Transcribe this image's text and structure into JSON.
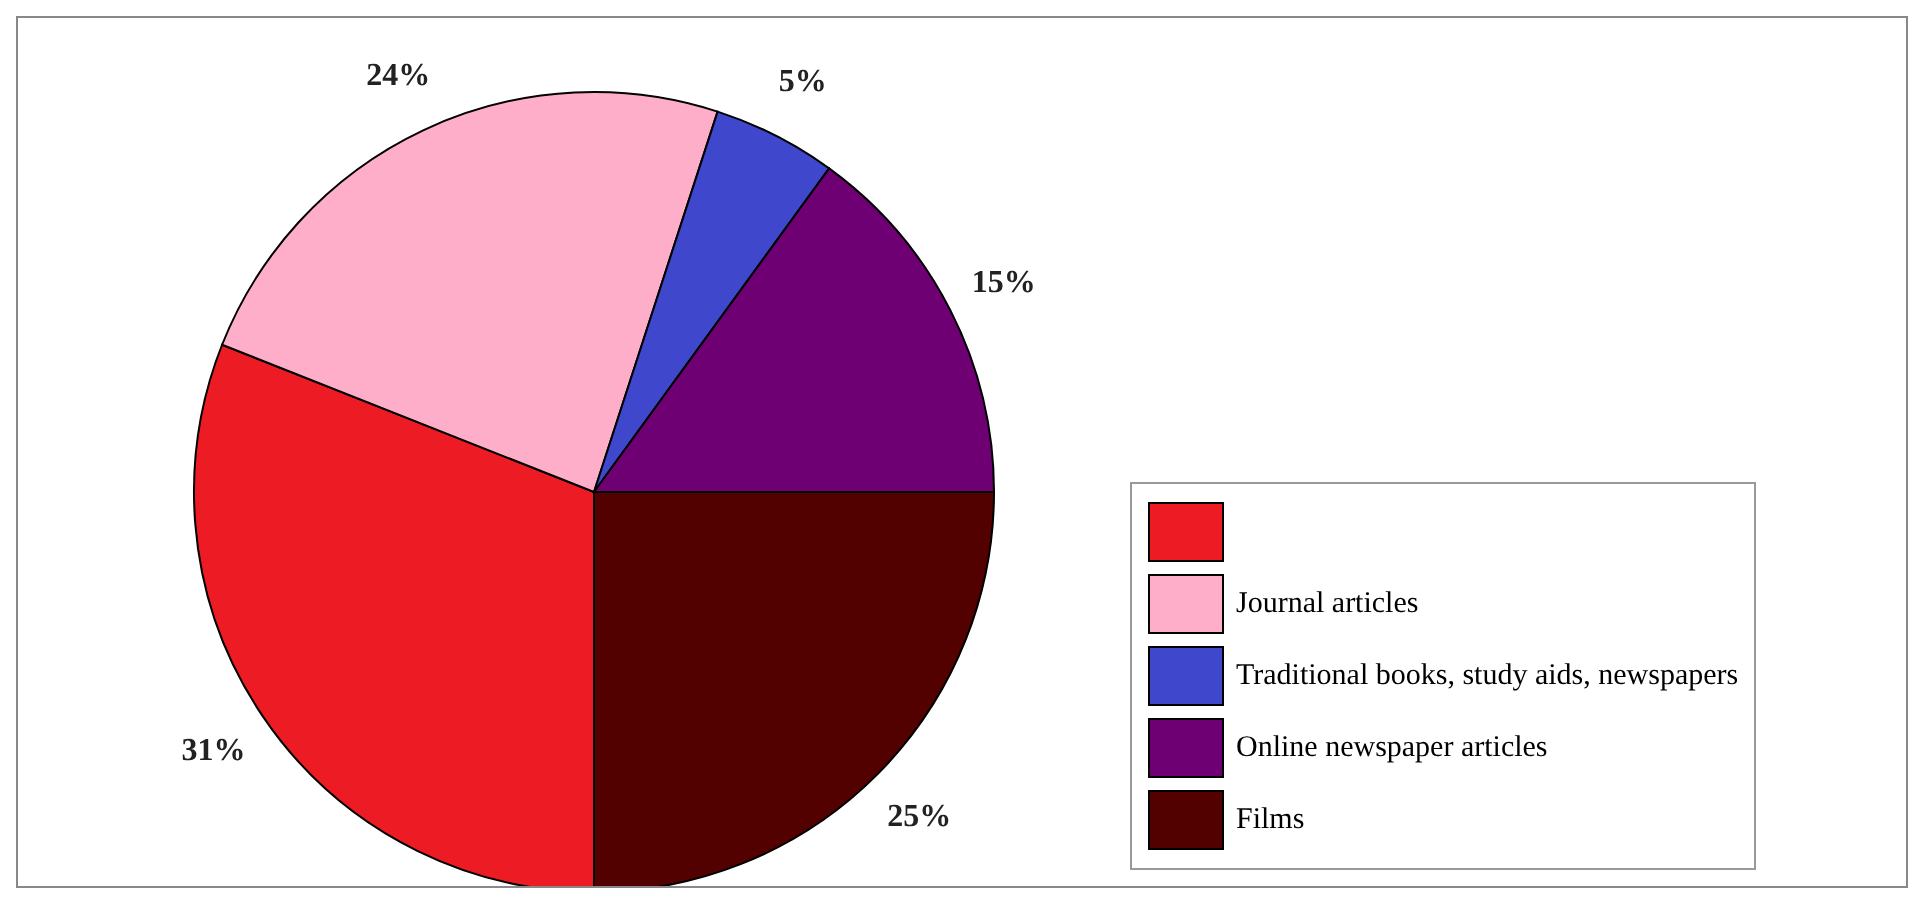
{
  "chart_data": {
    "type": "pie",
    "categories": [
      null,
      "Journal articles",
      "Traditional books, study aids, newspapers",
      "Online newspaper articles",
      "Films"
    ],
    "values": [
      31,
      24,
      5,
      15,
      25
    ],
    "value_labels": [
      "31%",
      "24%",
      "5%",
      "15%",
      "25%"
    ],
    "colors": [
      "#ed1c24",
      "#ffaec9",
      "#3f48cc",
      "#6f0073",
      "#520000"
    ],
    "legend": "right"
  }
}
